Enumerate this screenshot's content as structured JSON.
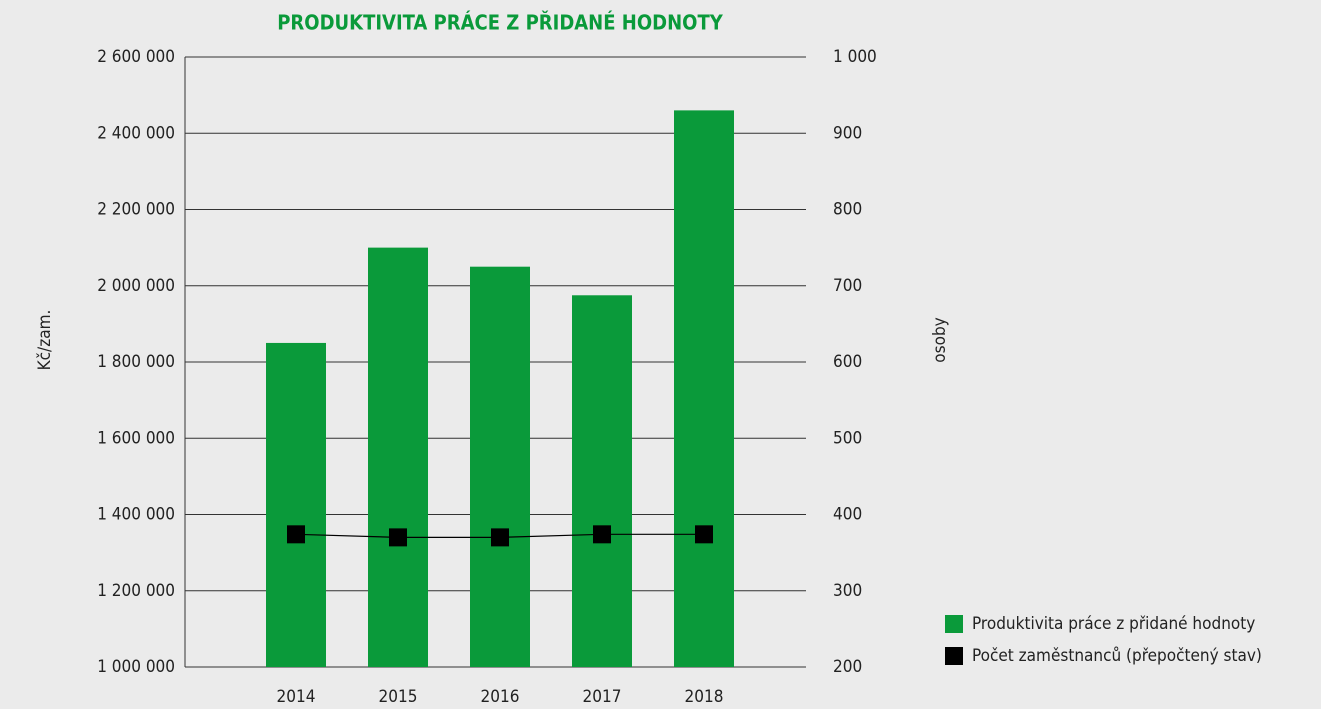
{
  "chart_data": {
    "type": "bar",
    "title": "PRODUKTIVITA PRÁCE Z PŘIDANÉ HODNOTY",
    "ylabel": "Kč/zam.",
    "y2label": "osoby",
    "categories": [
      "2014",
      "2015",
      "2016",
      "2017",
      "2018"
    ],
    "series": [
      {
        "name": "Produktivita práce z přidané hodnoty",
        "type": "bar",
        "color": "#0a9a3a",
        "values": [
          1850000,
          2100000,
          2050000,
          1975000,
          2460000
        ]
      },
      {
        "name": "Počet zaměstnanců (přepočtený stav)",
        "type": "line",
        "axis": "y2",
        "color": "#000000",
        "values": [
          374,
          370,
          370,
          374,
          374
        ]
      }
    ],
    "ylim": [
      1000000,
      2600000
    ],
    "yticks": [
      {
        "value": 1000000,
        "label": "1 000 000"
      },
      {
        "value": 1200000,
        "label": "1 200 000"
      },
      {
        "value": 1400000,
        "label": "1 400 000"
      },
      {
        "value": 1600000,
        "label": "1 600 000"
      },
      {
        "value": 1800000,
        "label": "1 800 000"
      },
      {
        "value": 2000000,
        "label": "2 000 000"
      },
      {
        "value": 2200000,
        "label": "2 200 000"
      },
      {
        "value": 2400000,
        "label": "2 400 000"
      },
      {
        "value": 2600000,
        "label": "2 600 000"
      }
    ],
    "y2lim": [
      200,
      1000
    ],
    "y2ticks": [
      200,
      300,
      400,
      500,
      600,
      700,
      800,
      900,
      {
        "value": 1000,
        "label": "1 000"
      }
    ],
    "grid": true,
    "legend": "bottom-right"
  }
}
